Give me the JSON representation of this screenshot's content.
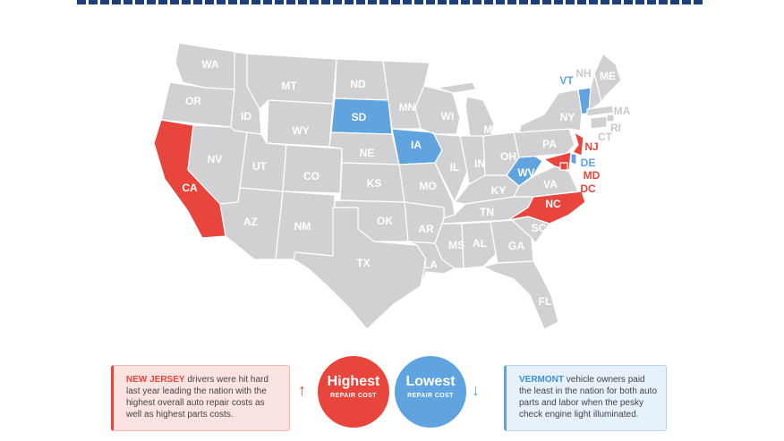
{
  "colors": {
    "highest": "#e8453c",
    "lowest": "#5fa3df",
    "neutral": "#d1d1d3",
    "border": "#ffffff"
  },
  "states": {
    "WA": {
      "label": "WA",
      "category": "neutral"
    },
    "OR": {
      "label": "OR",
      "category": "neutral"
    },
    "CA": {
      "label": "CA",
      "category": "highest"
    },
    "ID": {
      "label": "ID",
      "category": "neutral"
    },
    "NV": {
      "label": "NV",
      "category": "neutral"
    },
    "MT": {
      "label": "MT",
      "category": "neutral"
    },
    "WY": {
      "label": "WY",
      "category": "neutral"
    },
    "UT": {
      "label": "UT",
      "category": "neutral"
    },
    "AZ": {
      "label": "AZ",
      "category": "neutral"
    },
    "CO": {
      "label": "CO",
      "category": "neutral"
    },
    "NM": {
      "label": "NM",
      "category": "neutral"
    },
    "ND": {
      "label": "ND",
      "category": "neutral"
    },
    "SD": {
      "label": "SD",
      "category": "lowest"
    },
    "NE": {
      "label": "NE",
      "category": "neutral"
    },
    "KS": {
      "label": "KS",
      "category": "neutral"
    },
    "OK": {
      "label": "OK",
      "category": "neutral"
    },
    "TX": {
      "label": "TX",
      "category": "neutral"
    },
    "MN": {
      "label": "MN",
      "category": "neutral"
    },
    "IA": {
      "label": "IA",
      "category": "lowest"
    },
    "MO": {
      "label": "MO",
      "category": "neutral"
    },
    "AR": {
      "label": "AR",
      "category": "neutral"
    },
    "LA": {
      "label": "LA",
      "category": "neutral"
    },
    "WI": {
      "label": "WI",
      "category": "neutral"
    },
    "IL": {
      "label": "IL",
      "category": "neutral"
    },
    "MI": {
      "label": "MI",
      "category": "neutral"
    },
    "IN": {
      "label": "IN",
      "category": "neutral"
    },
    "OH": {
      "label": "OH",
      "category": "neutral"
    },
    "KY": {
      "label": "KY",
      "category": "neutral"
    },
    "TN": {
      "label": "TN",
      "category": "neutral"
    },
    "MS": {
      "label": "MS",
      "category": "neutral"
    },
    "AL": {
      "label": "AL",
      "category": "neutral"
    },
    "GA": {
      "label": "GA",
      "category": "neutral"
    },
    "FL": {
      "label": "FL",
      "category": "neutral"
    },
    "SC": {
      "label": "SC",
      "category": "neutral"
    },
    "NC": {
      "label": "NC",
      "category": "highest"
    },
    "VA": {
      "label": "VA",
      "category": "neutral"
    },
    "WV": {
      "label": "WV",
      "category": "lowest"
    },
    "PA": {
      "label": "PA",
      "category": "neutral"
    },
    "NY": {
      "label": "NY",
      "category": "neutral"
    },
    "VT": {
      "label": "VT",
      "category": "lowest"
    },
    "NH": {
      "label": "NH",
      "category": "neutral"
    },
    "ME": {
      "label": "ME",
      "category": "neutral"
    },
    "MA": {
      "label": "MA",
      "category": "neutral"
    },
    "RI": {
      "label": "RI",
      "category": "neutral"
    },
    "CT": {
      "label": "CT",
      "category": "neutral"
    },
    "NJ": {
      "label": "NJ",
      "category": "highest"
    },
    "DE": {
      "label": "DE",
      "category": "lowest"
    },
    "MD": {
      "label": "MD",
      "category": "highest"
    },
    "DC": {
      "label": "DC",
      "category": "highest"
    }
  },
  "highest_callout": {
    "lead": "NEW JERSEY",
    "text": " drivers were hit hard last year leading the nation with the highest overall auto repair costs as well as highest parts costs."
  },
  "lowest_callout": {
    "lead": "VERMONT",
    "text": " vehicle owners paid the least in the nation for both auto parts and labor when the pesky check engine light illuminated."
  },
  "highest_bubble": {
    "big": "Highest",
    "small": "REPAIR COST"
  },
  "lowest_bubble": {
    "big": "Lowest",
    "small": "REPAIR COST"
  },
  "arrows": {
    "up": "↑",
    "down": "↓"
  }
}
